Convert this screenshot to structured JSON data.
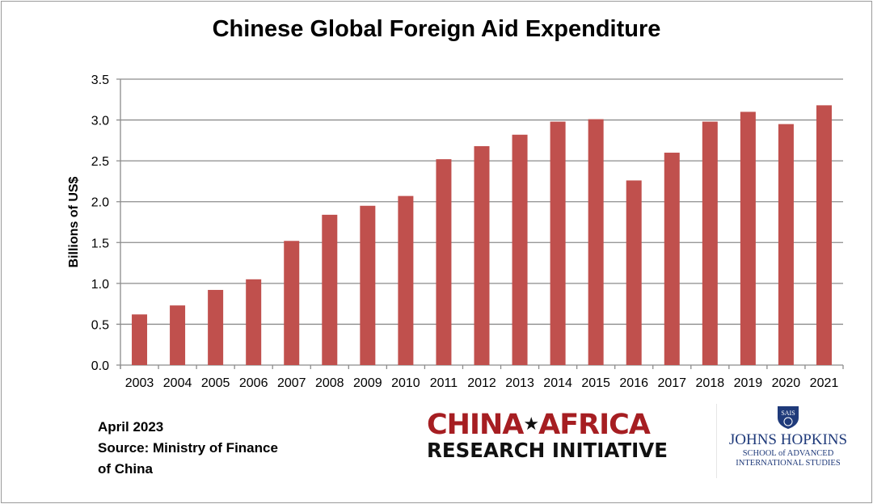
{
  "chart_data": {
    "type": "bar",
    "title": "Chinese Global Foreign Aid Expenditure",
    "xlabel": "",
    "ylabel": "Billions of US$",
    "ylim": [
      0,
      3.5
    ],
    "yticks": [
      "0.0",
      "0.5",
      "1.0",
      "1.5",
      "2.0",
      "2.5",
      "3.0",
      "3.5"
    ],
    "grid": true,
    "categories": [
      "2003",
      "2004",
      "2005",
      "2006",
      "2007",
      "2008",
      "2009",
      "2010",
      "2011",
      "2012",
      "2013",
      "2014",
      "2015",
      "2016",
      "2017",
      "2018",
      "2019",
      "2020",
      "2021"
    ],
    "values": [
      0.62,
      0.73,
      0.92,
      1.05,
      1.52,
      1.84,
      1.95,
      2.07,
      2.52,
      2.68,
      2.82,
      2.98,
      3.01,
      2.26,
      2.6,
      2.98,
      3.1,
      2.95,
      3.18
    ],
    "bar_color": "#c0504d"
  },
  "notes": {
    "date": "April 2023",
    "source_line1": "Source: Ministry of Finance",
    "source_line2": "of China"
  },
  "logos": {
    "cari_line1a": "CHINA",
    "cari_line1b": "AFRICA",
    "cari_line2": "RESEARCH INITIATIVE",
    "jhu_shield": "SAIS",
    "jhu_name": "JOHNS HOPKINS",
    "jhu_sub1": "SCHOOL of ADVANCED",
    "jhu_sub2": "INTERNATIONAL STUDIES"
  }
}
